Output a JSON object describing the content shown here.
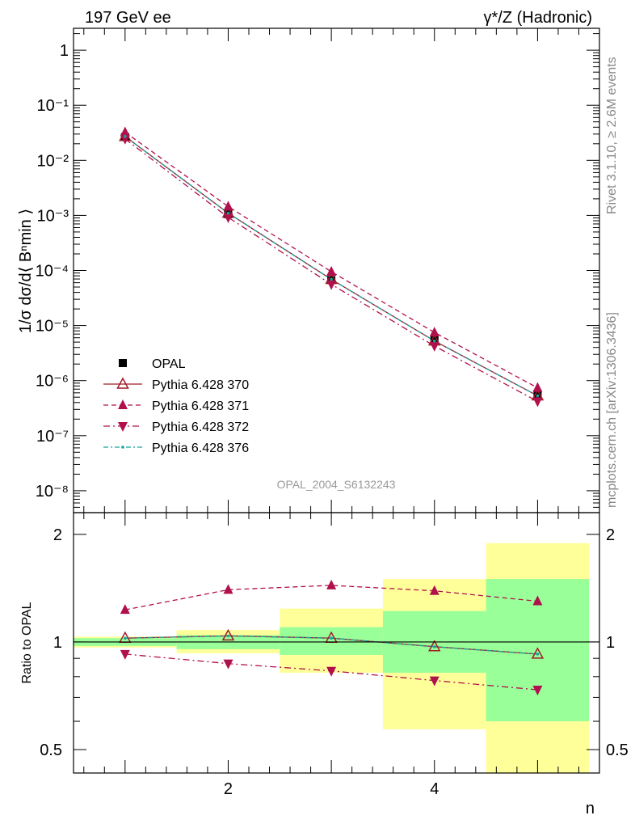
{
  "header": {
    "left": "197 GeV ee",
    "right": "γ*/Z (Hadronic)"
  },
  "side_text": {
    "rivet": "Rivet 3.1.10, ≥ 2.6M events",
    "mcplots": "mcplots.cern.ch [arXiv:1306.3436]"
  },
  "watermark": "OPAL_2004_S6132243",
  "colors": {
    "data": "#000000",
    "p370": "#a01c28",
    "p371": "#b0104c",
    "p372": "#b0104c",
    "p376": "#1aa3a0",
    "band_inner": "#99ff99",
    "band_outer": "#ffff99"
  },
  "chart_data": [
    {
      "type": "scatter",
      "panel": "main",
      "ylabel": "1/σ dσ/d⟨ Bⁿmin ⟩",
      "yscale": "log",
      "ylim": [
        4e-09,
        2.5
      ],
      "xlim": [
        0.5,
        5.6
      ],
      "y_ticks": [
        "1",
        "10⁻¹",
        "10⁻²",
        "10⁻³",
        "10⁻⁴",
        "10⁻⁵",
        "10⁻⁶",
        "10⁻⁷",
        "10⁻⁸"
      ],
      "legend_position": "bottom-left",
      "x": [
        1,
        2,
        3,
        4,
        5
      ],
      "series": [
        {
          "name": "OPAL",
          "values": [
            0.0265,
            0.00105,
            6.7e-05,
            5.4e-06,
            5.7e-07
          ],
          "style": "square"
        },
        {
          "name": "Pythia 6.428 370",
          "values": [
            0.0272,
            0.0011,
            6.9e-05,
            5.25e-06,
            5.3e-07
          ],
          "style": "open-triangle-solid"
        },
        {
          "name": "Pythia 6.428 371",
          "values": [
            0.0325,
            0.00145,
            9.5e-05,
            7.5e-06,
            7.4e-07
          ],
          "style": "triangle-dashed"
        },
        {
          "name": "Pythia 6.428 372",
          "values": [
            0.0245,
            0.00092,
            5.6e-05,
            4.25e-06,
            4.2e-07
          ],
          "style": "down-triangle-dashdot"
        },
        {
          "name": "Pythia 6.428 376",
          "values": [
            0.0272,
            0.0011,
            6.9e-05,
            5.25e-06,
            5.3e-07
          ],
          "style": "dot-dashdot"
        }
      ]
    },
    {
      "type": "line",
      "panel": "ratio",
      "xlabel": "n",
      "ylabel": "Ratio to OPAL",
      "yscale": "log",
      "ylim": [
        0.43,
        2.3
      ],
      "x_ticks": [
        "2",
        "4"
      ],
      "y_ticks": [
        "0.5",
        "1",
        "2"
      ],
      "x": [
        1,
        2,
        3,
        4,
        5
      ],
      "bands": {
        "bin_edges": [
          [
            0.5,
            1.5
          ],
          [
            1.5,
            2.5
          ],
          [
            2.5,
            3.5
          ],
          [
            3.5,
            4.5
          ],
          [
            4.5,
            5.5
          ]
        ],
        "inner": [
          [
            0.975,
            1.025
          ],
          [
            0.955,
            1.045
          ],
          [
            0.92,
            1.1
          ],
          [
            0.82,
            1.22
          ],
          [
            0.6,
            1.5
          ]
        ],
        "outer": [
          [
            0.965,
            1.035
          ],
          [
            0.93,
            1.08
          ],
          [
            0.82,
            1.24
          ],
          [
            0.57,
            1.5
          ],
          [
            0.34,
            1.89
          ]
        ]
      },
      "series": [
        {
          "name": "Pythia 6.428 370",
          "values": [
            1.025,
            1.04,
            1.025,
            0.97,
            0.925
          ]
        },
        {
          "name": "Pythia 6.428 371",
          "values": [
            1.23,
            1.4,
            1.44,
            1.39,
            1.3
          ]
        },
        {
          "name": "Pythia 6.428 372",
          "values": [
            0.925,
            0.87,
            0.83,
            0.78,
            0.735
          ]
        },
        {
          "name": "Pythia 6.428 376",
          "values": [
            1.025,
            1.04,
            1.025,
            0.97,
            0.925
          ]
        }
      ]
    }
  ]
}
